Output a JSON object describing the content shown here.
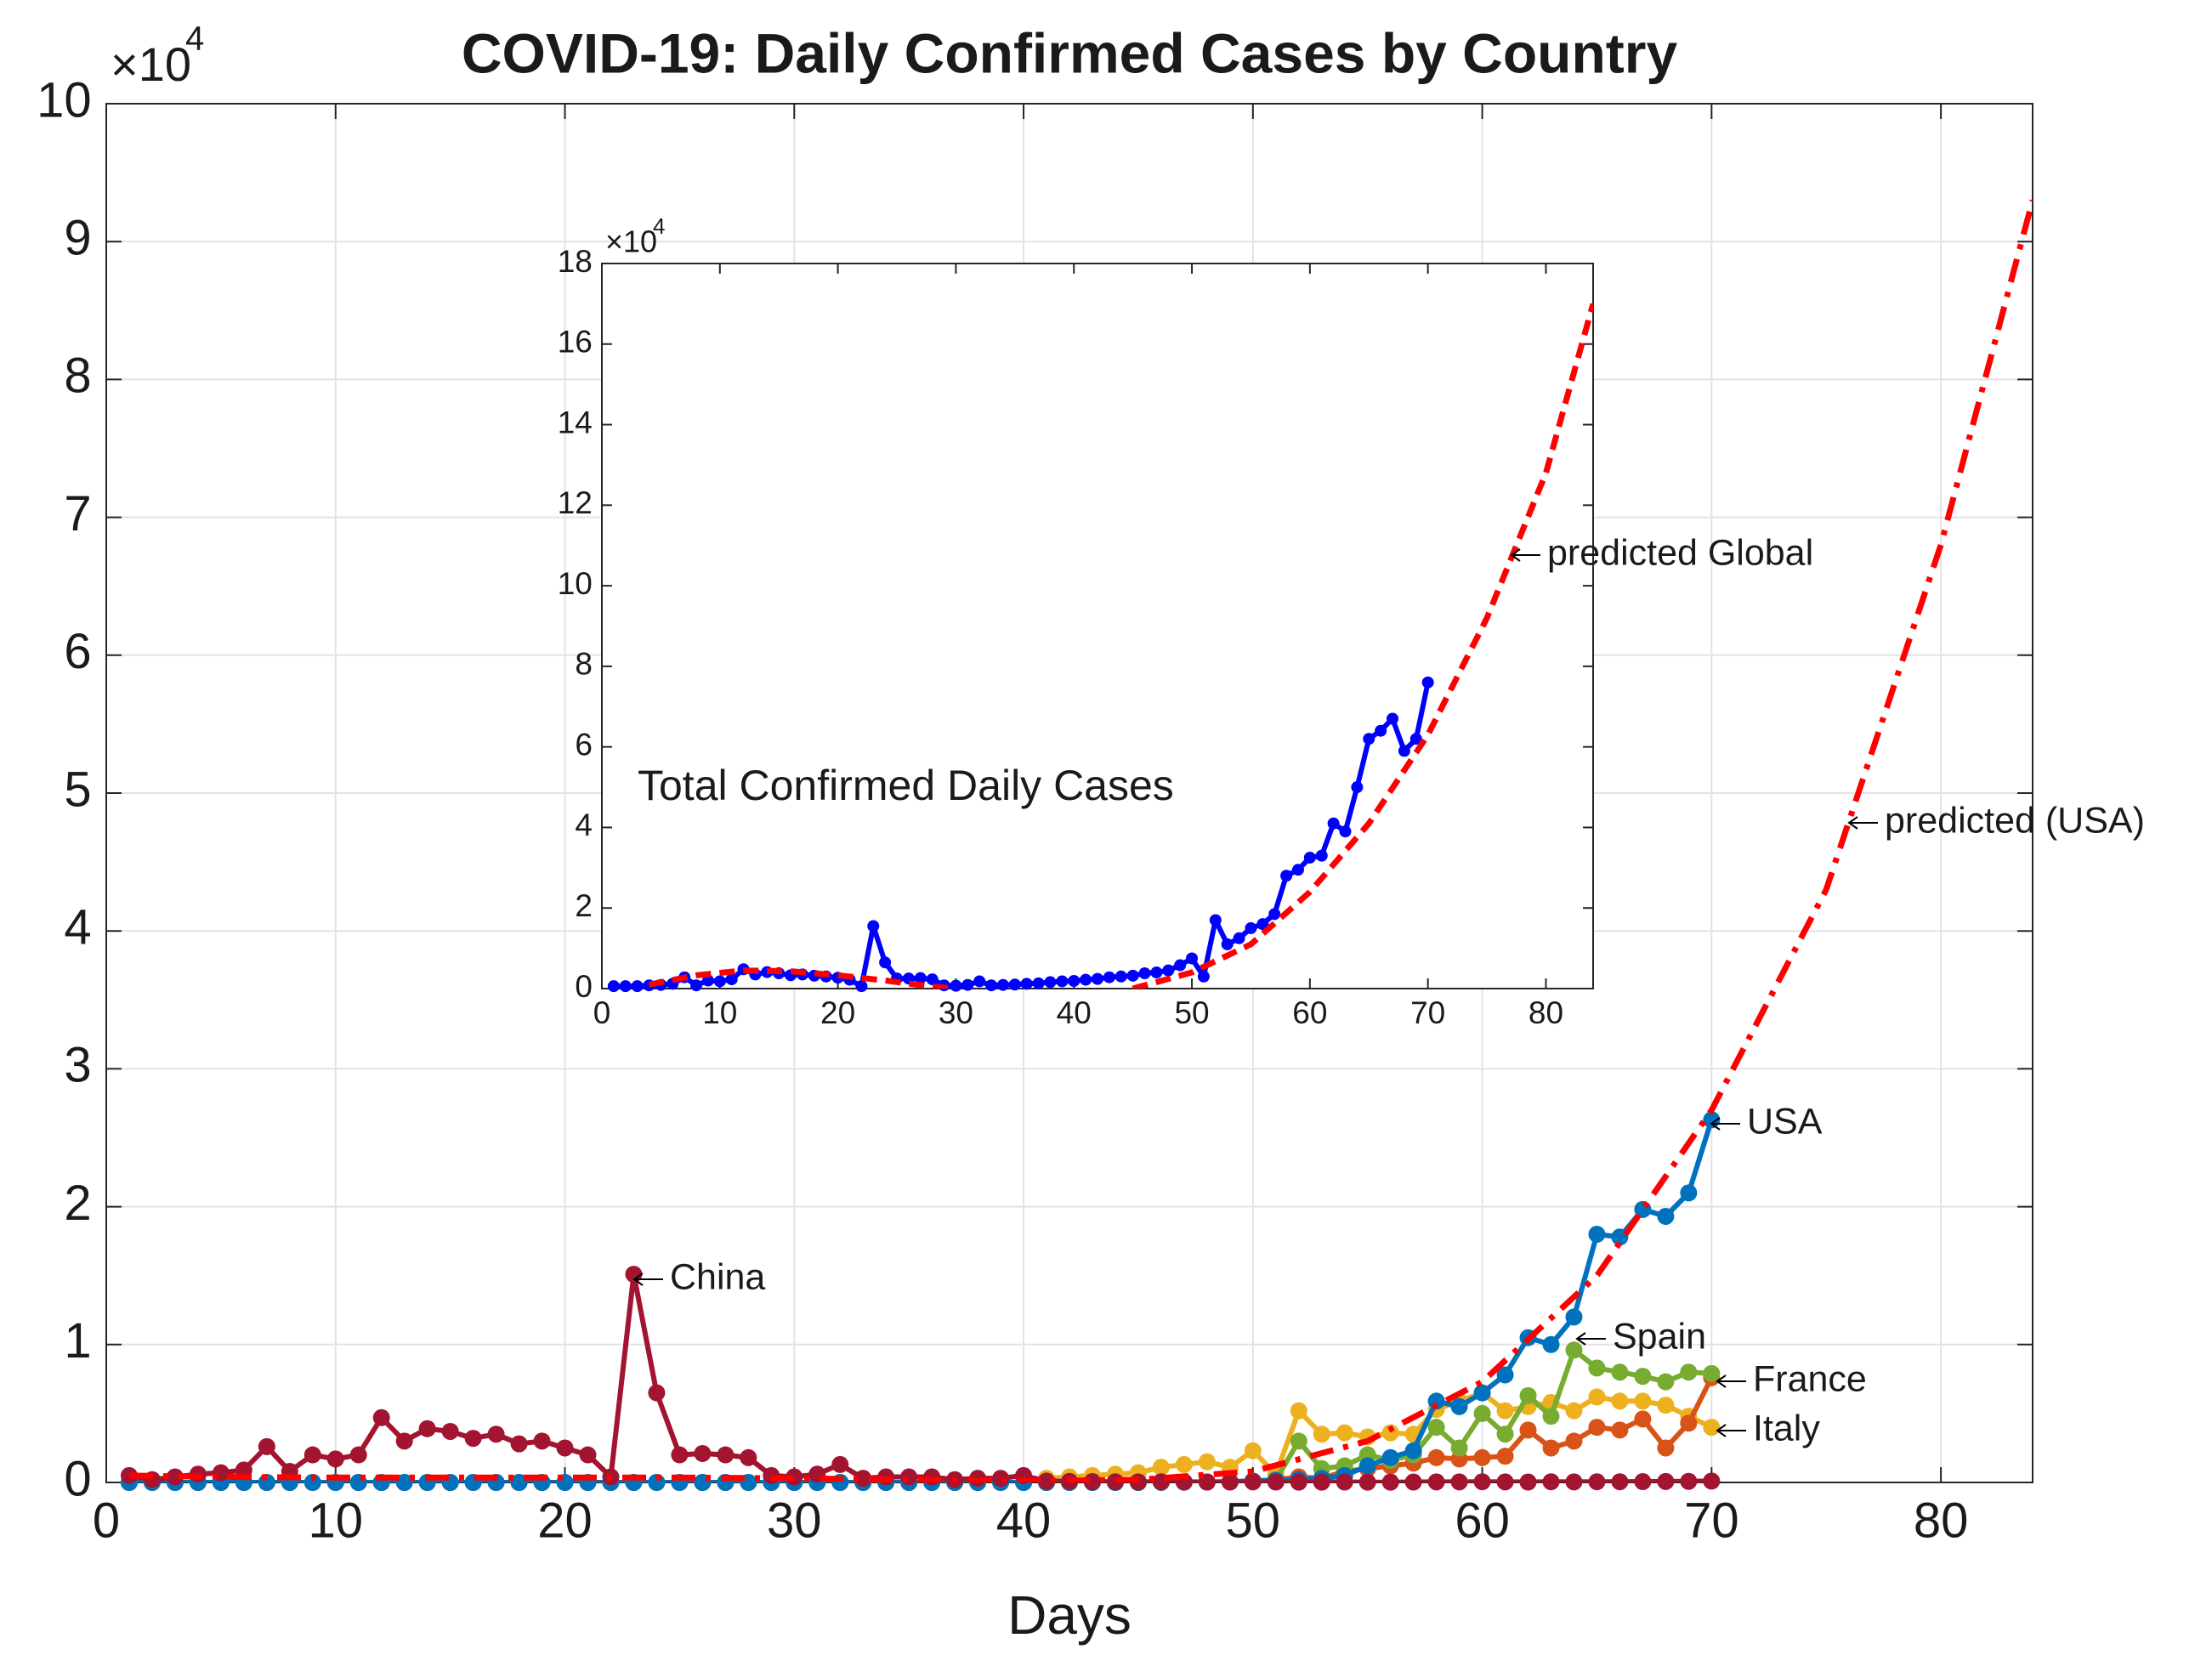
{
  "chart_data": [
    {
      "type": "line",
      "title": "COVID-19: Daily Confirmed Cases by Country",
      "x_label": "Days",
      "y_multiplier": {
        "base": "×10",
        "exponent": "4"
      },
      "xlim": [
        0,
        84
      ],
      "xticks": [
        0,
        10,
        20,
        30,
        40,
        50,
        60,
        70,
        80
      ],
      "ylim": [
        0,
        100000
      ],
      "yticks": [
        0,
        {
          "value": 10000,
          "label": "1"
        },
        {
          "value": 20000,
          "label": "2"
        },
        {
          "value": 30000,
          "label": "3"
        },
        {
          "value": 40000,
          "label": "4"
        },
        {
          "value": 50000,
          "label": "5"
        },
        {
          "value": 60000,
          "label": "6"
        },
        {
          "value": 70000,
          "label": "7"
        },
        {
          "value": 80000,
          "label": "8"
        },
        {
          "value": 90000,
          "label": "9"
        },
        {
          "value": 100000,
          "label": "10"
        }
      ],
      "grid": true,
      "x": [
        1,
        2,
        3,
        4,
        5,
        6,
        7,
        8,
        9,
        10,
        11,
        12,
        13,
        14,
        15,
        16,
        17,
        18,
        19,
        20,
        21,
        22,
        23,
        24,
        25,
        26,
        27,
        28,
        29,
        30,
        31,
        32,
        33,
        34,
        35,
        36,
        37,
        38,
        39,
        40,
        41,
        42,
        43,
        44,
        45,
        46,
        47,
        48,
        49,
        50,
        51,
        52,
        53,
        54,
        55,
        56,
        57,
        58,
        59,
        60,
        61,
        62,
        63,
        64,
        65,
        66,
        67,
        68,
        69,
        70
      ],
      "series": [
        {
          "name": "Italy",
          "color": "#EDB120",
          "markers": true,
          "values": [
            0,
            0,
            0,
            0,
            0,
            0,
            0,
            0,
            0,
            0,
            0,
            0,
            0,
            0,
            0,
            0,
            0,
            0,
            0,
            0,
            0,
            0,
            0,
            0,
            0,
            0,
            0,
            0,
            0,
            0,
            0,
            0,
            0,
            0,
            0,
            0,
            0,
            0,
            0,
            0,
            300,
            400,
            500,
            600,
            700,
            1100,
            1300,
            1500,
            1100,
            2300,
            600,
            5200,
            3500,
            3600,
            3300,
            3600,
            3500,
            5300,
            5900,
            6500,
            5200,
            5500,
            5800,
            5200,
            6200,
            5900,
            5900,
            5600,
            4800,
            4000
          ]
        },
        {
          "name": "France",
          "color": "#D95319",
          "markers": true,
          "values": [
            0,
            0,
            0,
            0,
            0,
            0,
            0,
            0,
            0,
            0,
            0,
            0,
            0,
            0,
            0,
            0,
            0,
            0,
            0,
            0,
            0,
            0,
            0,
            0,
            0,
            0,
            0,
            0,
            0,
            0,
            0,
            0,
            0,
            0,
            0,
            0,
            0,
            0,
            0,
            0,
            0,
            0,
            0,
            0,
            0,
            10,
            20,
            30,
            50,
            100,
            200,
            400,
            300,
            800,
            1000,
            1200,
            1400,
            1800,
            1700,
            1800,
            1900,
            3800,
            2500,
            3000,
            4000,
            3800,
            4600,
            2500,
            4300,
            7600
          ]
        },
        {
          "name": "Spain",
          "color": "#77AC30",
          "markers": true,
          "values": [
            0,
            0,
            0,
            0,
            0,
            0,
            0,
            0,
            0,
            0,
            0,
            0,
            0,
            0,
            0,
            0,
            0,
            0,
            0,
            0,
            0,
            0,
            0,
            0,
            0,
            0,
            0,
            0,
            0,
            0,
            0,
            0,
            0,
            0,
            0,
            0,
            0,
            0,
            0,
            0,
            0,
            0,
            0,
            0,
            0,
            10,
            20,
            30,
            50,
            100,
            200,
            3000,
            1000,
            1200,
            2000,
            1600,
            2000,
            4000,
            2500,
            5000,
            3500,
            6300,
            4800,
            9600,
            8300,
            8000,
            7700,
            7300,
            8000,
            7900
          ]
        },
        {
          "name": "USA",
          "color": "#0072BD",
          "markers": true,
          "values": [
            0,
            0,
            0,
            0,
            0,
            0,
            0,
            0,
            0,
            0,
            0,
            0,
            0,
            0,
            0,
            0,
            0,
            0,
            0,
            0,
            0,
            0,
            0,
            0,
            0,
            0,
            0,
            0,
            0,
            0,
            0,
            0,
            0,
            0,
            0,
            0,
            0,
            0,
            0,
            0,
            0,
            0,
            0,
            0,
            0,
            10,
            20,
            30,
            50,
            100,
            150,
            200,
            300,
            500,
            1200,
            1800,
            2300,
            5900,
            5500,
            6500,
            7800,
            10500,
            10000,
            12000,
            18000,
            17800,
            19800,
            19300,
            21000,
            26300
          ]
        },
        {
          "name": "China",
          "color": "#A2142F",
          "markers": true,
          "values": [
            500,
            200,
            400,
            600,
            700,
            900,
            2600,
            800,
            2000,
            1700,
            2000,
            4700,
            3000,
            3900,
            3700,
            3200,
            3500,
            2800,
            3000,
            2500,
            2000,
            400,
            15100,
            6500,
            2000,
            2100,
            2000,
            1800,
            500,
            400,
            600,
            1300,
            300,
            400,
            400,
            400,
            200,
            300,
            300,
            500,
            100,
            80,
            60,
            50,
            40,
            50,
            40,
            30,
            30,
            40,
            30,
            20,
            20,
            30,
            20,
            20,
            30,
            40,
            40,
            50,
            40,
            30,
            50,
            40,
            50,
            50,
            60,
            70,
            80,
            100
          ]
        },
        {
          "name": "predicted (USA)",
          "color": "#FF0000",
          "markers": false,
          "line_style": "dash-dot",
          "x": [
            1,
            5,
            10,
            15,
            20,
            25,
            30,
            35,
            40,
            45,
            50,
            55,
            60,
            65,
            70,
            75,
            80,
            84
          ],
          "values": [
            500,
            400,
            350,
            350,
            350,
            350,
            300,
            200,
            100,
            200,
            800,
            3000,
            7300,
            15000,
            27000,
            43000,
            68000,
            93000
          ]
        }
      ]
    },
    {
      "type": "line",
      "y_multiplier": {
        "base": "×10",
        "exponent": "4"
      },
      "xlim": [
        0,
        84
      ],
      "xticks": [
        0,
        10,
        20,
        30,
        40,
        50,
        60,
        70,
        80
      ],
      "ylim": [
        0,
        180000
      ],
      "yticks": [
        0,
        {
          "value": 20000,
          "label": "2"
        },
        {
          "value": 40000,
          "label": "4"
        },
        {
          "value": 60000,
          "label": "6"
        },
        {
          "value": 80000,
          "label": "8"
        },
        {
          "value": 100000,
          "label": "10"
        },
        {
          "value": 120000,
          "label": "12"
        },
        {
          "value": 140000,
          "label": "14"
        },
        {
          "value": 160000,
          "label": "16"
        },
        {
          "value": 180000,
          "label": "18"
        }
      ],
      "grid": false,
      "x": [
        1,
        2,
        3,
        4,
        5,
        6,
        7,
        8,
        9,
        10,
        11,
        12,
        13,
        14,
        15,
        16,
        17,
        18,
        19,
        20,
        21,
        22,
        23,
        24,
        25,
        26,
        27,
        28,
        29,
        30,
        31,
        32,
        33,
        34,
        35,
        36,
        37,
        38,
        39,
        40,
        41,
        42,
        43,
        44,
        45,
        46,
        47,
        48,
        49,
        50,
        51,
        52,
        53,
        54,
        55,
        56,
        57,
        58,
        59,
        60,
        61,
        62,
        63,
        64,
        65,
        66,
        67,
        68,
        69,
        70
      ],
      "series": [
        {
          "name": "Total Confirmed Daily Cases",
          "color": "#0000FF",
          "markers": true,
          "values": [
            600,
            600,
            600,
            800,
            900,
            1200,
            2800,
            800,
            2000,
            1800,
            2300,
            4800,
            3500,
            4100,
            3800,
            3300,
            3500,
            3200,
            3000,
            2700,
            2200,
            600,
            15500,
            6500,
            2500,
            2500,
            2600,
            2300,
            800,
            700,
            900,
            1800,
            800,
            900,
            1000,
            1200,
            1300,
            1600,
            1800,
            1900,
            2200,
            2400,
            2800,
            3000,
            3200,
            3800,
            4000,
            4500,
            5800,
            7500,
            3000,
            17000,
            11000,
            12500,
            15000,
            16000,
            18500,
            28000,
            29500,
            32500,
            33000,
            41000,
            39000,
            50000,
            62000,
            64000,
            67000,
            59000,
            62000,
            76000
          ]
        },
        {
          "name": "predicted Global",
          "color": "#FF0000",
          "markers": false,
          "line_style": "dashed",
          "x": [
            4,
            8,
            12,
            16,
            20,
            24,
            28,
            30,
            38,
            45,
            50,
            55,
            60,
            65,
            70,
            75,
            80,
            84
          ],
          "values": [
            1000,
            3300,
            4500,
            4300,
            3300,
            2000,
            500,
            0,
            null,
            0,
            4000,
            11000,
            24000,
            41000,
            63000,
            92000,
            128000,
            170000
          ]
        }
      ]
    }
  ]
}
